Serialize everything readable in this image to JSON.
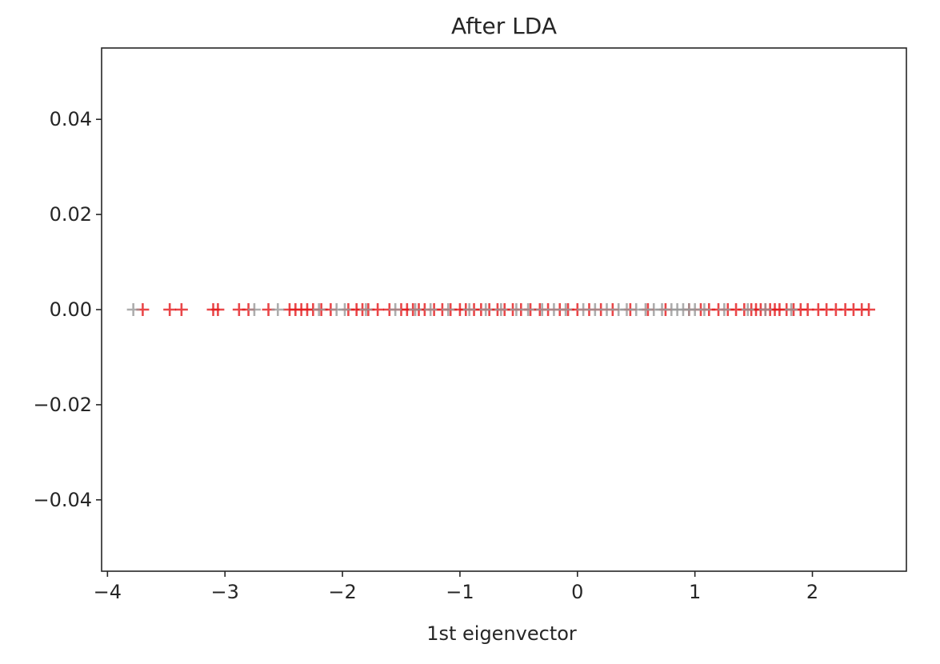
{
  "chart_data": {
    "type": "scatter",
    "title": "After LDA",
    "xlabel": "1st eigenvector",
    "ylabel": "",
    "xlim": [
      -4.05,
      2.8
    ],
    "ylim": [
      -0.055,
      0.055
    ],
    "marker": "+",
    "grid": false,
    "legend": "none",
    "xticks": [
      {
        "value": -4,
        "label": "−4"
      },
      {
        "value": -3,
        "label": "−3"
      },
      {
        "value": -2,
        "label": "−2"
      },
      {
        "value": -1,
        "label": "−1"
      },
      {
        "value": 0,
        "label": "0"
      },
      {
        "value": 1,
        "label": "1"
      },
      {
        "value": 2,
        "label": "2"
      }
    ],
    "yticks": [
      {
        "value": 0.04,
        "label": "0.04"
      },
      {
        "value": 0.02,
        "label": "0.02"
      },
      {
        "value": 0.0,
        "label": "0.00"
      },
      {
        "value": -0.02,
        "label": "−0.02"
      },
      {
        "value": -0.04,
        "label": "−0.04"
      }
    ],
    "series": [
      {
        "color": "#e41a1c",
        "y": 0.0,
        "x": [
          -3.7,
          -3.47,
          -3.37,
          -3.1,
          -3.06,
          -2.88,
          -2.8,
          -2.63,
          -2.45,
          -2.4,
          -2.35,
          -2.3,
          -2.25,
          -2.18,
          -2.1,
          -1.95,
          -1.88,
          -1.83,
          -1.78,
          -1.7,
          -1.6,
          -1.5,
          -1.45,
          -1.4,
          -1.35,
          -1.3,
          -1.22,
          -1.15,
          -1.08,
          -1.0,
          -0.95,
          -0.88,
          -0.82,
          -0.75,
          -0.68,
          -0.62,
          -0.55,
          -0.48,
          -0.4,
          -0.32,
          -0.25,
          -0.15,
          -0.08,
          0.0,
          0.1,
          0.2,
          0.3,
          0.45,
          0.6,
          0.75,
          0.95,
          1.05,
          1.12,
          1.2,
          1.28,
          1.35,
          1.42,
          1.48,
          1.52,
          1.56,
          1.6,
          1.64,
          1.68,
          1.72,
          1.78,
          1.84,
          1.9,
          1.96,
          2.05,
          2.12,
          2.2,
          2.28,
          2.35,
          2.42,
          2.48
        ]
      },
      {
        "color": "#999999",
        "y": 0.0,
        "x": [
          -3.78,
          -2.75,
          -2.55,
          -2.2,
          -2.05,
          -1.98,
          -1.8,
          -1.55,
          -1.38,
          -1.25,
          -1.1,
          -0.92,
          -0.78,
          -0.65,
          -0.52,
          -0.42,
          -0.3,
          -0.2,
          -0.1,
          0.05,
          0.15,
          0.25,
          0.35,
          0.42,
          0.5,
          0.58,
          0.65,
          0.72,
          0.8,
          0.85,
          0.9,
          0.95,
          1.0,
          1.08,
          1.25,
          1.45,
          1.6,
          1.82
        ]
      }
    ]
  }
}
